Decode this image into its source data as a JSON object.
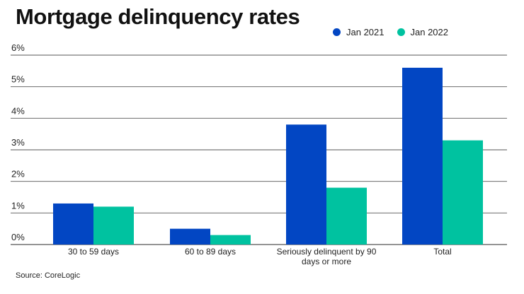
{
  "title": "Mortgage delinquency rates",
  "source": "Source: CoreLogic",
  "colors": {
    "jan2021": "#0246c3",
    "jan2022": "#00c2a0",
    "grid": "#555555"
  },
  "chart_data": {
    "type": "bar",
    "title": "Mortgage delinquency rates",
    "categories": [
      [
        "30 to 59 days"
      ],
      [
        "60 to 89 days"
      ],
      [
        "Seriously delinquent by 90",
        "days or more"
      ],
      [
        "Total"
      ]
    ],
    "series": [
      {
        "name": "Jan 2021",
        "values": [
          1.3,
          0.5,
          3.8,
          5.6
        ],
        "color": "#0246c3"
      },
      {
        "name": "Jan 2022",
        "values": [
          1.2,
          0.3,
          1.8,
          3.3
        ],
        "color": "#00c2a0"
      }
    ],
    "yticks": [
      "0%",
      "1%",
      "2%",
      "3%",
      "4%",
      "5%",
      "6%"
    ],
    "ylim": [
      0,
      6
    ],
    "grid": true,
    "legend": "top-right"
  }
}
